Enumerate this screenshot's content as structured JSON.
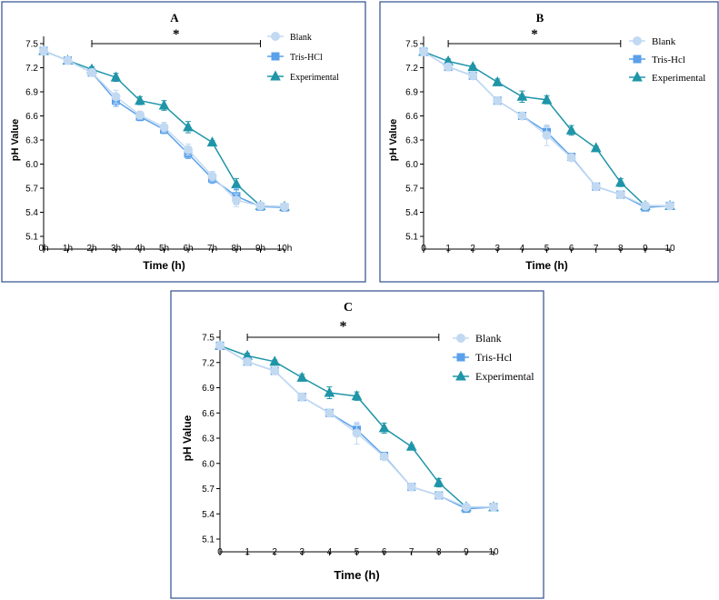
{
  "chart_data": [
    {
      "panel": "A",
      "type": "line",
      "title": "A",
      "xlabel": "Time  (h)",
      "ylabel": "pH Value",
      "categories": [
        "0h",
        "1h",
        "2h",
        "3h",
        "4h",
        "5h",
        "6h",
        "7h",
        "8h",
        "9h",
        "10h"
      ],
      "yticks": [
        "5.1",
        "5.4",
        "5.7",
        "6.0",
        "6.3",
        "6.6",
        "6.9",
        "7.2",
        "7.5"
      ],
      "ylim": [
        5.1,
        7.5
      ],
      "significance": {
        "from": 2,
        "to": 9,
        "label": "*"
      },
      "series": [
        {
          "name": "Blank",
          "marker": "circle",
          "color": "#c2d9f2",
          "values": [
            7.41,
            7.29,
            7.14,
            6.84,
            6.61,
            6.46,
            6.18,
            5.85,
            5.55,
            5.48,
            5.47
          ],
          "errors": [
            0.02,
            0.02,
            0.04,
            0.08,
            0.05,
            0.06,
            0.07,
            0.06,
            0.08,
            0.02,
            0.02
          ]
        },
        {
          "name": "Tris-HCl",
          "marker": "square",
          "color": "#5aa0ea",
          "values": [
            7.41,
            7.29,
            7.14,
            6.79,
            6.59,
            6.43,
            6.13,
            5.82,
            5.6,
            5.47,
            5.46
          ],
          "errors": [
            0.02,
            0.02,
            0.04,
            0.07,
            0.05,
            0.05,
            0.06,
            0.06,
            0.1,
            0.02,
            0.02
          ]
        },
        {
          "name": "Experimental",
          "marker": "triangle",
          "color": "#1f95a8",
          "values": [
            7.41,
            7.29,
            7.18,
            7.08,
            6.79,
            6.73,
            6.46,
            6.27,
            5.75,
            5.48,
            5.47
          ],
          "errors": [
            0.02,
            0.02,
            0.03,
            0.05,
            0.05,
            0.06,
            0.07,
            0.02,
            0.07,
            0.02,
            0.02
          ]
        }
      ]
    },
    {
      "panel": "B",
      "type": "line",
      "title": "B",
      "xlabel": "Time  (h)",
      "ylabel": "pH Value",
      "categories": [
        "0",
        "1",
        "2",
        "3",
        "4",
        "5",
        "6",
        "7",
        "8",
        "9",
        "10"
      ],
      "yticks": [
        "5.1",
        "5.4",
        "5.7",
        "6.0",
        "6.3",
        "6.6",
        "6.9",
        "7.2",
        "7.5"
      ],
      "ylim": [
        5.1,
        7.5
      ],
      "significance": {
        "from": 1,
        "to": 8,
        "label": "*"
      },
      "series": [
        {
          "name": "Blank",
          "marker": "circle",
          "color": "#c2d9f2",
          "values": [
            7.4,
            7.21,
            7.1,
            6.79,
            6.6,
            6.36,
            6.08,
            5.72,
            5.62,
            5.48,
            5.48
          ],
          "errors": [
            0.02,
            0.03,
            0.04,
            0.03,
            0.03,
            0.13,
            0.03,
            0.04,
            0.03,
            0.02,
            0.02
          ]
        },
        {
          "name": "Tris-Hcl",
          "marker": "square",
          "color": "#5aa0ea",
          "values": [
            7.4,
            7.21,
            7.1,
            6.79,
            6.6,
            6.4,
            6.09,
            5.72,
            5.62,
            5.46,
            5.48
          ],
          "errors": [
            0.02,
            0.03,
            0.04,
            0.03,
            0.03,
            0.07,
            0.03,
            0.04,
            0.03,
            0.02,
            0.02
          ]
        },
        {
          "name": "Experimental",
          "marker": "triangle",
          "color": "#1f95a8",
          "values": [
            7.4,
            7.28,
            7.21,
            7.02,
            6.84,
            6.8,
            6.42,
            6.2,
            5.77,
            5.48,
            5.48
          ],
          "errors": [
            0.02,
            0.03,
            0.02,
            0.04,
            0.07,
            0.05,
            0.06,
            0.02,
            0.05,
            0.02,
            0.02
          ]
        }
      ]
    },
    {
      "panel": "C",
      "type": "line",
      "title": "C",
      "xlabel": "Time  (h)",
      "ylabel": "pH Value",
      "categories": [
        "0",
        "1",
        "2",
        "3",
        "4",
        "5",
        "6",
        "7",
        "8",
        "9",
        "10"
      ],
      "yticks": [
        "5.1",
        "5.4",
        "5.7",
        "6.0",
        "6.3",
        "6.6",
        "6.9",
        "7.2",
        "7.5"
      ],
      "ylim": [
        5.1,
        7.5
      ],
      "significance": {
        "from": 1,
        "to": 8,
        "label": "*"
      },
      "series": [
        {
          "name": "Blank",
          "marker": "circle",
          "color": "#c2d9f2",
          "values": [
            7.4,
            7.21,
            7.1,
            6.79,
            6.6,
            6.36,
            6.08,
            5.72,
            5.62,
            5.48,
            5.48
          ],
          "errors": [
            0.02,
            0.03,
            0.04,
            0.03,
            0.03,
            0.13,
            0.03,
            0.04,
            0.03,
            0.02,
            0.02
          ]
        },
        {
          "name": "Tris-Hcl",
          "marker": "square",
          "color": "#5aa0ea",
          "values": [
            7.4,
            7.21,
            7.1,
            6.79,
            6.6,
            6.4,
            6.09,
            5.72,
            5.62,
            5.46,
            5.48
          ],
          "errors": [
            0.02,
            0.03,
            0.04,
            0.03,
            0.03,
            0.07,
            0.03,
            0.04,
            0.03,
            0.02,
            0.02
          ]
        },
        {
          "name": "Experimental",
          "marker": "triangle",
          "color": "#1f95a8",
          "values": [
            7.4,
            7.28,
            7.21,
            7.02,
            6.84,
            6.8,
            6.42,
            6.2,
            5.77,
            5.48,
            5.48
          ],
          "errors": [
            0.02,
            0.03,
            0.02,
            0.04,
            0.07,
            0.05,
            0.06,
            0.02,
            0.05,
            0.02,
            0.02
          ]
        }
      ]
    }
  ]
}
